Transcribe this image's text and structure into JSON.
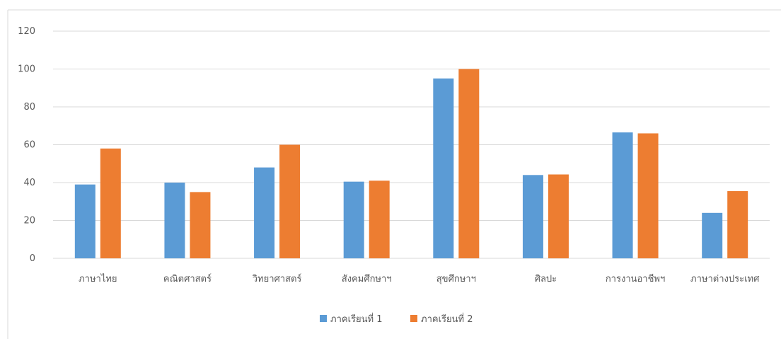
{
  "chart_data": {
    "type": "bar",
    "title": "",
    "xlabel": "",
    "ylabel": "",
    "ylim": [
      0,
      120
    ],
    "yticks": [
      0,
      20,
      40,
      60,
      80,
      100,
      120
    ],
    "grid": true,
    "legend_position": "bottom",
    "categories": [
      "ภาษาไทย",
      "คณิตศาสตร์",
      "วิทยาศาสตร์",
      "สังคมศึกษาฯ",
      "สุขศึกษาฯ",
      "ศิลปะ",
      "การงานอาชีพฯ",
      "ภาษาต่างประเทศ"
    ],
    "series": [
      {
        "name": "ภาคเรียนที่ 1",
        "color": "#5b9bd5",
        "values": [
          39,
          40,
          48,
          40.5,
          95,
          44,
          66.5,
          24
        ]
      },
      {
        "name": "ภาคเรียนที่ 2",
        "color": "#ed7d31",
        "values": [
          58,
          35,
          60,
          41,
          100,
          44.3,
          66,
          35.5
        ]
      }
    ]
  }
}
